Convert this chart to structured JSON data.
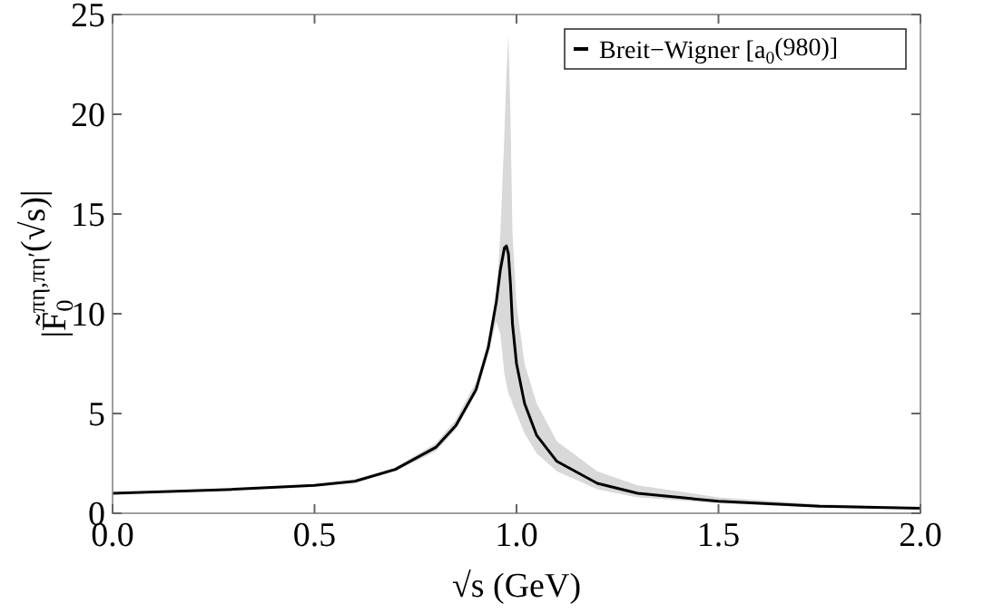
{
  "chart_data": {
    "type": "line",
    "xlabel": "√s (GeV)",
    "ylabel": "|F̃$_{0}$$^{πη,πη′}$(√s)|",
    "xlim": [
      0,
      2
    ],
    "ylim": [
      0,
      25
    ],
    "xticks": [
      {
        "value": 0,
        "label": "0.0"
      },
      0.5,
      {
        "value": 1,
        "label": "1.0"
      },
      1.5,
      {
        "value": 2,
        "label": "2.0"
      }
    ],
    "yticks": [
      0,
      5,
      10,
      15,
      20,
      25
    ],
    "grid": false,
    "legend": "top right",
    "marker": "none",
    "line_style": "solid",
    "series": [
      {
        "name": "Breit−Wigner [a$_{0}$(980)]",
        "color": "#000000",
        "x": [
          0,
          0.3,
          0.5,
          0.6,
          0.7,
          0.8,
          0.85,
          0.9,
          0.93,
          0.95,
          0.96,
          0.97,
          0.975,
          0.98,
          0.985,
          0.99,
          1.0,
          1.02,
          1.05,
          1.1,
          1.2,
          1.3,
          1.5,
          1.75,
          2.0
        ],
        "values": [
          1.0,
          1.2,
          1.4,
          1.6,
          2.2,
          3.3,
          4.4,
          6.2,
          8.3,
          10.6,
          12.2,
          13.3,
          13.4,
          13.0,
          11.5,
          9.5,
          7.5,
          5.5,
          3.9,
          2.6,
          1.5,
          1.0,
          0.6,
          0.35,
          0.25
        ],
        "lower": [
          1.0,
          1.2,
          1.35,
          1.55,
          2.1,
          3.1,
          4.2,
          6.0,
          8.0,
          9.6,
          9.0,
          7.0,
          6.5,
          6.0,
          5.8,
          5.5,
          5.0,
          4.0,
          3.0,
          2.1,
          1.2,
          0.8,
          0.5,
          0.3,
          0.22
        ],
        "upper": [
          1.0,
          1.2,
          1.45,
          1.7,
          2.3,
          3.5,
          4.7,
          6.6,
          8.6,
          10.8,
          14,
          19,
          22,
          24,
          20,
          14,
          10.5,
          7.5,
          5.5,
          3.6,
          2.1,
          1.4,
          0.8,
          0.45,
          0.3
        ]
      }
    ]
  }
}
